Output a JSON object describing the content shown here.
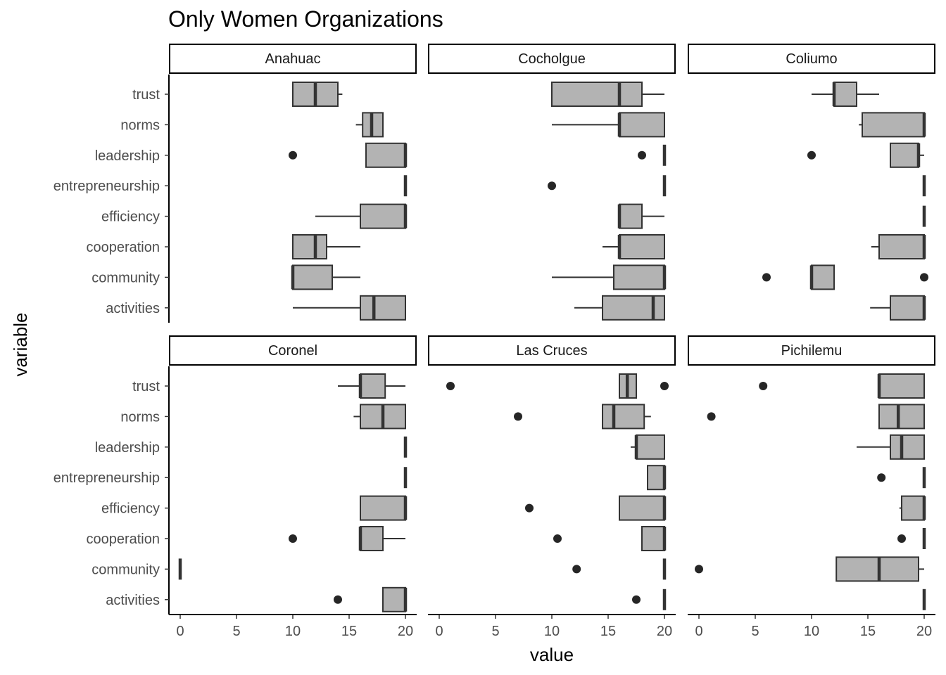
{
  "chart_data": {
    "type": "boxplot",
    "title": "Only Women Organizations",
    "xlabel": "value",
    "ylabel": "variable",
    "xlim": [
      -1,
      21
    ],
    "x_ticks": [
      0,
      5,
      10,
      15,
      20
    ],
    "categories": [
      "trust",
      "norms",
      "leadership",
      "entrepreneurship",
      "efficiency",
      "cooperation",
      "community",
      "activities"
    ],
    "fill_color": "#b3b3b3",
    "line_color": "#333333",
    "grid": false,
    "facets": [
      {
        "name": "Anahuac",
        "boxes": [
          {
            "variable": "trust",
            "lower_whisker": 10,
            "q1": 10,
            "median": 12,
            "q3": 14,
            "upper_whisker": 14.4,
            "outliers": []
          },
          {
            "variable": "norms",
            "lower_whisker": 15.6,
            "q1": 16.2,
            "median": 17,
            "q3": 18,
            "upper_whisker": 18,
            "outliers": []
          },
          {
            "variable": "leadership",
            "lower_whisker": 16.5,
            "q1": 16.5,
            "median": 20,
            "q3": 20,
            "upper_whisker": 20,
            "outliers": [
              10
            ]
          },
          {
            "variable": "entrepreneurship",
            "lower_whisker": 20,
            "q1": 20,
            "median": 20,
            "q3": 20,
            "upper_whisker": 20,
            "outliers": []
          },
          {
            "variable": "efficiency",
            "lower_whisker": 12,
            "q1": 16,
            "median": 20,
            "q3": 20,
            "upper_whisker": 20,
            "outliers": []
          },
          {
            "variable": "cooperation",
            "lower_whisker": 10,
            "q1": 10,
            "median": 12,
            "q3": 13,
            "upper_whisker": 16,
            "outliers": []
          },
          {
            "variable": "community",
            "lower_whisker": 10,
            "q1": 10,
            "median": 10,
            "q3": 13.5,
            "upper_whisker": 16,
            "outliers": []
          },
          {
            "variable": "activities",
            "lower_whisker": 10,
            "q1": 16,
            "median": 17.2,
            "q3": 20,
            "upper_whisker": 20,
            "outliers": []
          }
        ]
      },
      {
        "name": "Cocholgue",
        "boxes": [
          {
            "variable": "trust",
            "lower_whisker": 10,
            "q1": 10,
            "median": 16,
            "q3": 18,
            "upper_whisker": 20,
            "outliers": []
          },
          {
            "variable": "norms",
            "lower_whisker": 10,
            "q1": 16,
            "median": 16,
            "q3": 20,
            "upper_whisker": 20,
            "outliers": []
          },
          {
            "variable": "leadership",
            "lower_whisker": 20,
            "q1": 20,
            "median": 20,
            "q3": 20,
            "upper_whisker": 20,
            "outliers": [
              18
            ]
          },
          {
            "variable": "entrepreneurship",
            "lower_whisker": 20,
            "q1": 20,
            "median": 20,
            "q3": 20,
            "upper_whisker": 20,
            "outliers": [
              10
            ]
          },
          {
            "variable": "efficiency",
            "lower_whisker": 16,
            "q1": 16,
            "median": 16,
            "q3": 18,
            "upper_whisker": 20,
            "outliers": []
          },
          {
            "variable": "cooperation",
            "lower_whisker": 14.5,
            "q1": 16,
            "median": 16,
            "q3": 20,
            "upper_whisker": 20,
            "outliers": []
          },
          {
            "variable": "community",
            "lower_whisker": 10,
            "q1": 15.5,
            "median": 20,
            "q3": 20,
            "upper_whisker": 20,
            "outliers": []
          },
          {
            "variable": "activities",
            "lower_whisker": 12,
            "q1": 14.5,
            "median": 19,
            "q3": 20,
            "upper_whisker": 20,
            "outliers": []
          }
        ]
      },
      {
        "name": "Coliumo",
        "boxes": [
          {
            "variable": "trust",
            "lower_whisker": 10,
            "q1": 12,
            "median": 12,
            "q3": 14,
            "upper_whisker": 16,
            "outliers": []
          },
          {
            "variable": "norms",
            "lower_whisker": 14.2,
            "q1": 14.5,
            "median": 20,
            "q3": 20,
            "upper_whisker": 20,
            "outliers": []
          },
          {
            "variable": "leadership",
            "lower_whisker": 17,
            "q1": 17,
            "median": 19.5,
            "q3": 19.5,
            "upper_whisker": 20,
            "outliers": [
              10
            ]
          },
          {
            "variable": "entrepreneurship",
            "lower_whisker": 20,
            "q1": 20,
            "median": 20,
            "q3": 20,
            "upper_whisker": 20,
            "outliers": []
          },
          {
            "variable": "efficiency",
            "lower_whisker": 20,
            "q1": 20,
            "median": 20,
            "q3": 20,
            "upper_whisker": 20,
            "outliers": []
          },
          {
            "variable": "cooperation",
            "lower_whisker": 15.3,
            "q1": 16,
            "median": 20,
            "q3": 20,
            "upper_whisker": 20,
            "outliers": []
          },
          {
            "variable": "community",
            "lower_whisker": 10,
            "q1": 10,
            "median": 10,
            "q3": 12,
            "upper_whisker": 12,
            "outliers": [
              6,
              20
            ]
          },
          {
            "variable": "activities",
            "lower_whisker": 15.2,
            "q1": 17,
            "median": 20,
            "q3": 20,
            "upper_whisker": 20,
            "outliers": []
          }
        ]
      },
      {
        "name": "Coronel",
        "boxes": [
          {
            "variable": "trust",
            "lower_whisker": 14,
            "q1": 16,
            "median": 16,
            "q3": 18.2,
            "upper_whisker": 20,
            "outliers": []
          },
          {
            "variable": "norms",
            "lower_whisker": 15.4,
            "q1": 16,
            "median": 18,
            "q3": 20,
            "upper_whisker": 20,
            "outliers": []
          },
          {
            "variable": "leadership",
            "lower_whisker": 20,
            "q1": 20,
            "median": 20,
            "q3": 20,
            "upper_whisker": 20,
            "outliers": []
          },
          {
            "variable": "entrepreneurship",
            "lower_whisker": 20,
            "q1": 20,
            "median": 20,
            "q3": 20,
            "upper_whisker": 20,
            "outliers": []
          },
          {
            "variable": "efficiency",
            "lower_whisker": 16,
            "q1": 16,
            "median": 20,
            "q3": 20,
            "upper_whisker": 20,
            "outliers": []
          },
          {
            "variable": "cooperation",
            "lower_whisker": 16,
            "q1": 16,
            "median": 16,
            "q3": 18,
            "upper_whisker": 20,
            "outliers": [
              10
            ]
          },
          {
            "variable": "community",
            "lower_whisker": 0,
            "q1": 0,
            "median": 0,
            "q3": 0,
            "upper_whisker": 0,
            "outliers": []
          },
          {
            "variable": "activities",
            "lower_whisker": 18,
            "q1": 18,
            "median": 20,
            "q3": 20,
            "upper_whisker": 20,
            "outliers": [
              14
            ]
          }
        ]
      },
      {
        "name": "Las Cruces",
        "boxes": [
          {
            "variable": "trust",
            "lower_whisker": 16,
            "q1": 16,
            "median": 16.7,
            "q3": 17.5,
            "upper_whisker": 17.5,
            "outliers": [
              1,
              20
            ]
          },
          {
            "variable": "norms",
            "lower_whisker": 14.5,
            "q1": 14.5,
            "median": 15.5,
            "q3": 18.2,
            "upper_whisker": 18.8,
            "outliers": [
              7
            ]
          },
          {
            "variable": "leadership",
            "lower_whisker": 17,
            "q1": 17.5,
            "median": 17.5,
            "q3": 20,
            "upper_whisker": 20,
            "outliers": []
          },
          {
            "variable": "entrepreneurship",
            "lower_whisker": 18.5,
            "q1": 18.5,
            "median": 20,
            "q3": 20,
            "upper_whisker": 20,
            "outliers": []
          },
          {
            "variable": "efficiency",
            "lower_whisker": 16,
            "q1": 16,
            "median": 20,
            "q3": 20,
            "upper_whisker": 20,
            "outliers": [
              8
            ]
          },
          {
            "variable": "cooperation",
            "lower_whisker": 18,
            "q1": 18,
            "median": 20,
            "q3": 20,
            "upper_whisker": 20,
            "outliers": [
              10.5
            ]
          },
          {
            "variable": "community",
            "lower_whisker": 20,
            "q1": 20,
            "median": 20,
            "q3": 20,
            "upper_whisker": 20,
            "outliers": [
              12.2
            ]
          },
          {
            "variable": "activities",
            "lower_whisker": 20,
            "q1": 20,
            "median": 20,
            "q3": 20,
            "upper_whisker": 20,
            "outliers": [
              17.5
            ]
          }
        ]
      },
      {
        "name": "Pichilemu",
        "boxes": [
          {
            "variable": "trust",
            "lower_whisker": 16,
            "q1": 16,
            "median": 16,
            "q3": 20,
            "upper_whisker": 20,
            "outliers": [
              5.7
            ]
          },
          {
            "variable": "norms",
            "lower_whisker": 16,
            "q1": 16,
            "median": 17.7,
            "q3": 20,
            "upper_whisker": 20,
            "outliers": [
              1.1
            ]
          },
          {
            "variable": "leadership",
            "lower_whisker": 14,
            "q1": 17,
            "median": 18,
            "q3": 20,
            "upper_whisker": 20,
            "outliers": []
          },
          {
            "variable": "entrepreneurship",
            "lower_whisker": 20,
            "q1": 20,
            "median": 20,
            "q3": 20,
            "upper_whisker": 20,
            "outliers": [
              16.2
            ]
          },
          {
            "variable": "efficiency",
            "lower_whisker": 17.8,
            "q1": 18,
            "median": 20,
            "q3": 20,
            "upper_whisker": 20,
            "outliers": []
          },
          {
            "variable": "cooperation",
            "lower_whisker": 20,
            "q1": 20,
            "median": 20,
            "q3": 20,
            "upper_whisker": 20,
            "outliers": [
              18
            ]
          },
          {
            "variable": "community",
            "lower_whisker": 12.2,
            "q1": 12.2,
            "median": 16,
            "q3": 19.5,
            "upper_whisker": 20,
            "outliers": [
              0
            ]
          },
          {
            "variable": "activities",
            "lower_whisker": 20,
            "q1": 20,
            "median": 20,
            "q3": 20,
            "upper_whisker": 20,
            "outliers": []
          }
        ]
      }
    ]
  }
}
